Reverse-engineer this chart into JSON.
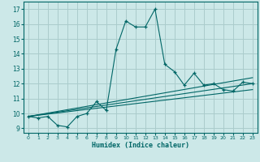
{
  "xlabel": "Humidex (Indice chaleur)",
  "background_color": "#cce8e8",
  "grid_color": "#aacccc",
  "line_color": "#006666",
  "xlim": [
    -0.5,
    23.5
  ],
  "ylim": [
    8.7,
    17.5
  ],
  "xticks": [
    0,
    1,
    2,
    3,
    4,
    5,
    6,
    7,
    8,
    9,
    10,
    11,
    12,
    13,
    14,
    15,
    16,
    17,
    18,
    19,
    20,
    21,
    22,
    23
  ],
  "yticks": [
    9,
    10,
    11,
    12,
    13,
    14,
    15,
    16,
    17
  ],
  "main_x": [
    0,
    1,
    2,
    3,
    4,
    5,
    6,
    7,
    8,
    9,
    10,
    11,
    12,
    13,
    14,
    15,
    16,
    17,
    18,
    19,
    20,
    21,
    22,
    23
  ],
  "main_y": [
    9.8,
    9.7,
    9.8,
    9.2,
    9.1,
    9.8,
    10.0,
    10.8,
    10.2,
    14.3,
    16.2,
    15.8,
    15.8,
    17.0,
    13.3,
    12.8,
    11.9,
    12.7,
    11.9,
    12.0,
    11.6,
    11.5,
    12.1,
    12.0
  ],
  "line1_x": [
    0,
    23
  ],
  "line1_y": [
    9.8,
    11.6
  ],
  "line2_x": [
    0,
    23
  ],
  "line2_y": [
    9.8,
    12.0
  ],
  "line3_x": [
    0,
    23
  ],
  "line3_y": [
    9.8,
    12.4
  ]
}
